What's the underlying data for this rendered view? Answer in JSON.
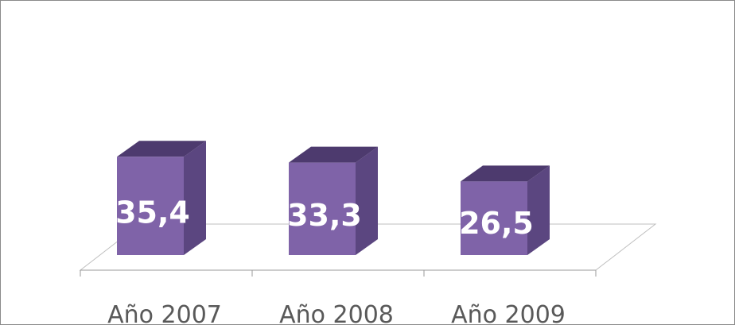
{
  "chart_data": {
    "type": "bar",
    "style": "3d-column",
    "categories": [
      "Año 2007",
      "Año 2008",
      "Año 2009"
    ],
    "values": [
      35.4,
      33.3,
      26.5
    ],
    "value_labels": [
      "35,4",
      "33,3",
      "26,5"
    ],
    "title": "",
    "xlabel": "",
    "ylabel": "",
    "ylim": [
      0,
      90
    ],
    "grid": false,
    "legend": "none",
    "colors": {
      "front": "#7f63a8",
      "side": "#5b4680",
      "top": "#4d3a6e",
      "floor_stroke": "#bfbfbf",
      "axis": "#9a9a9a"
    }
  }
}
